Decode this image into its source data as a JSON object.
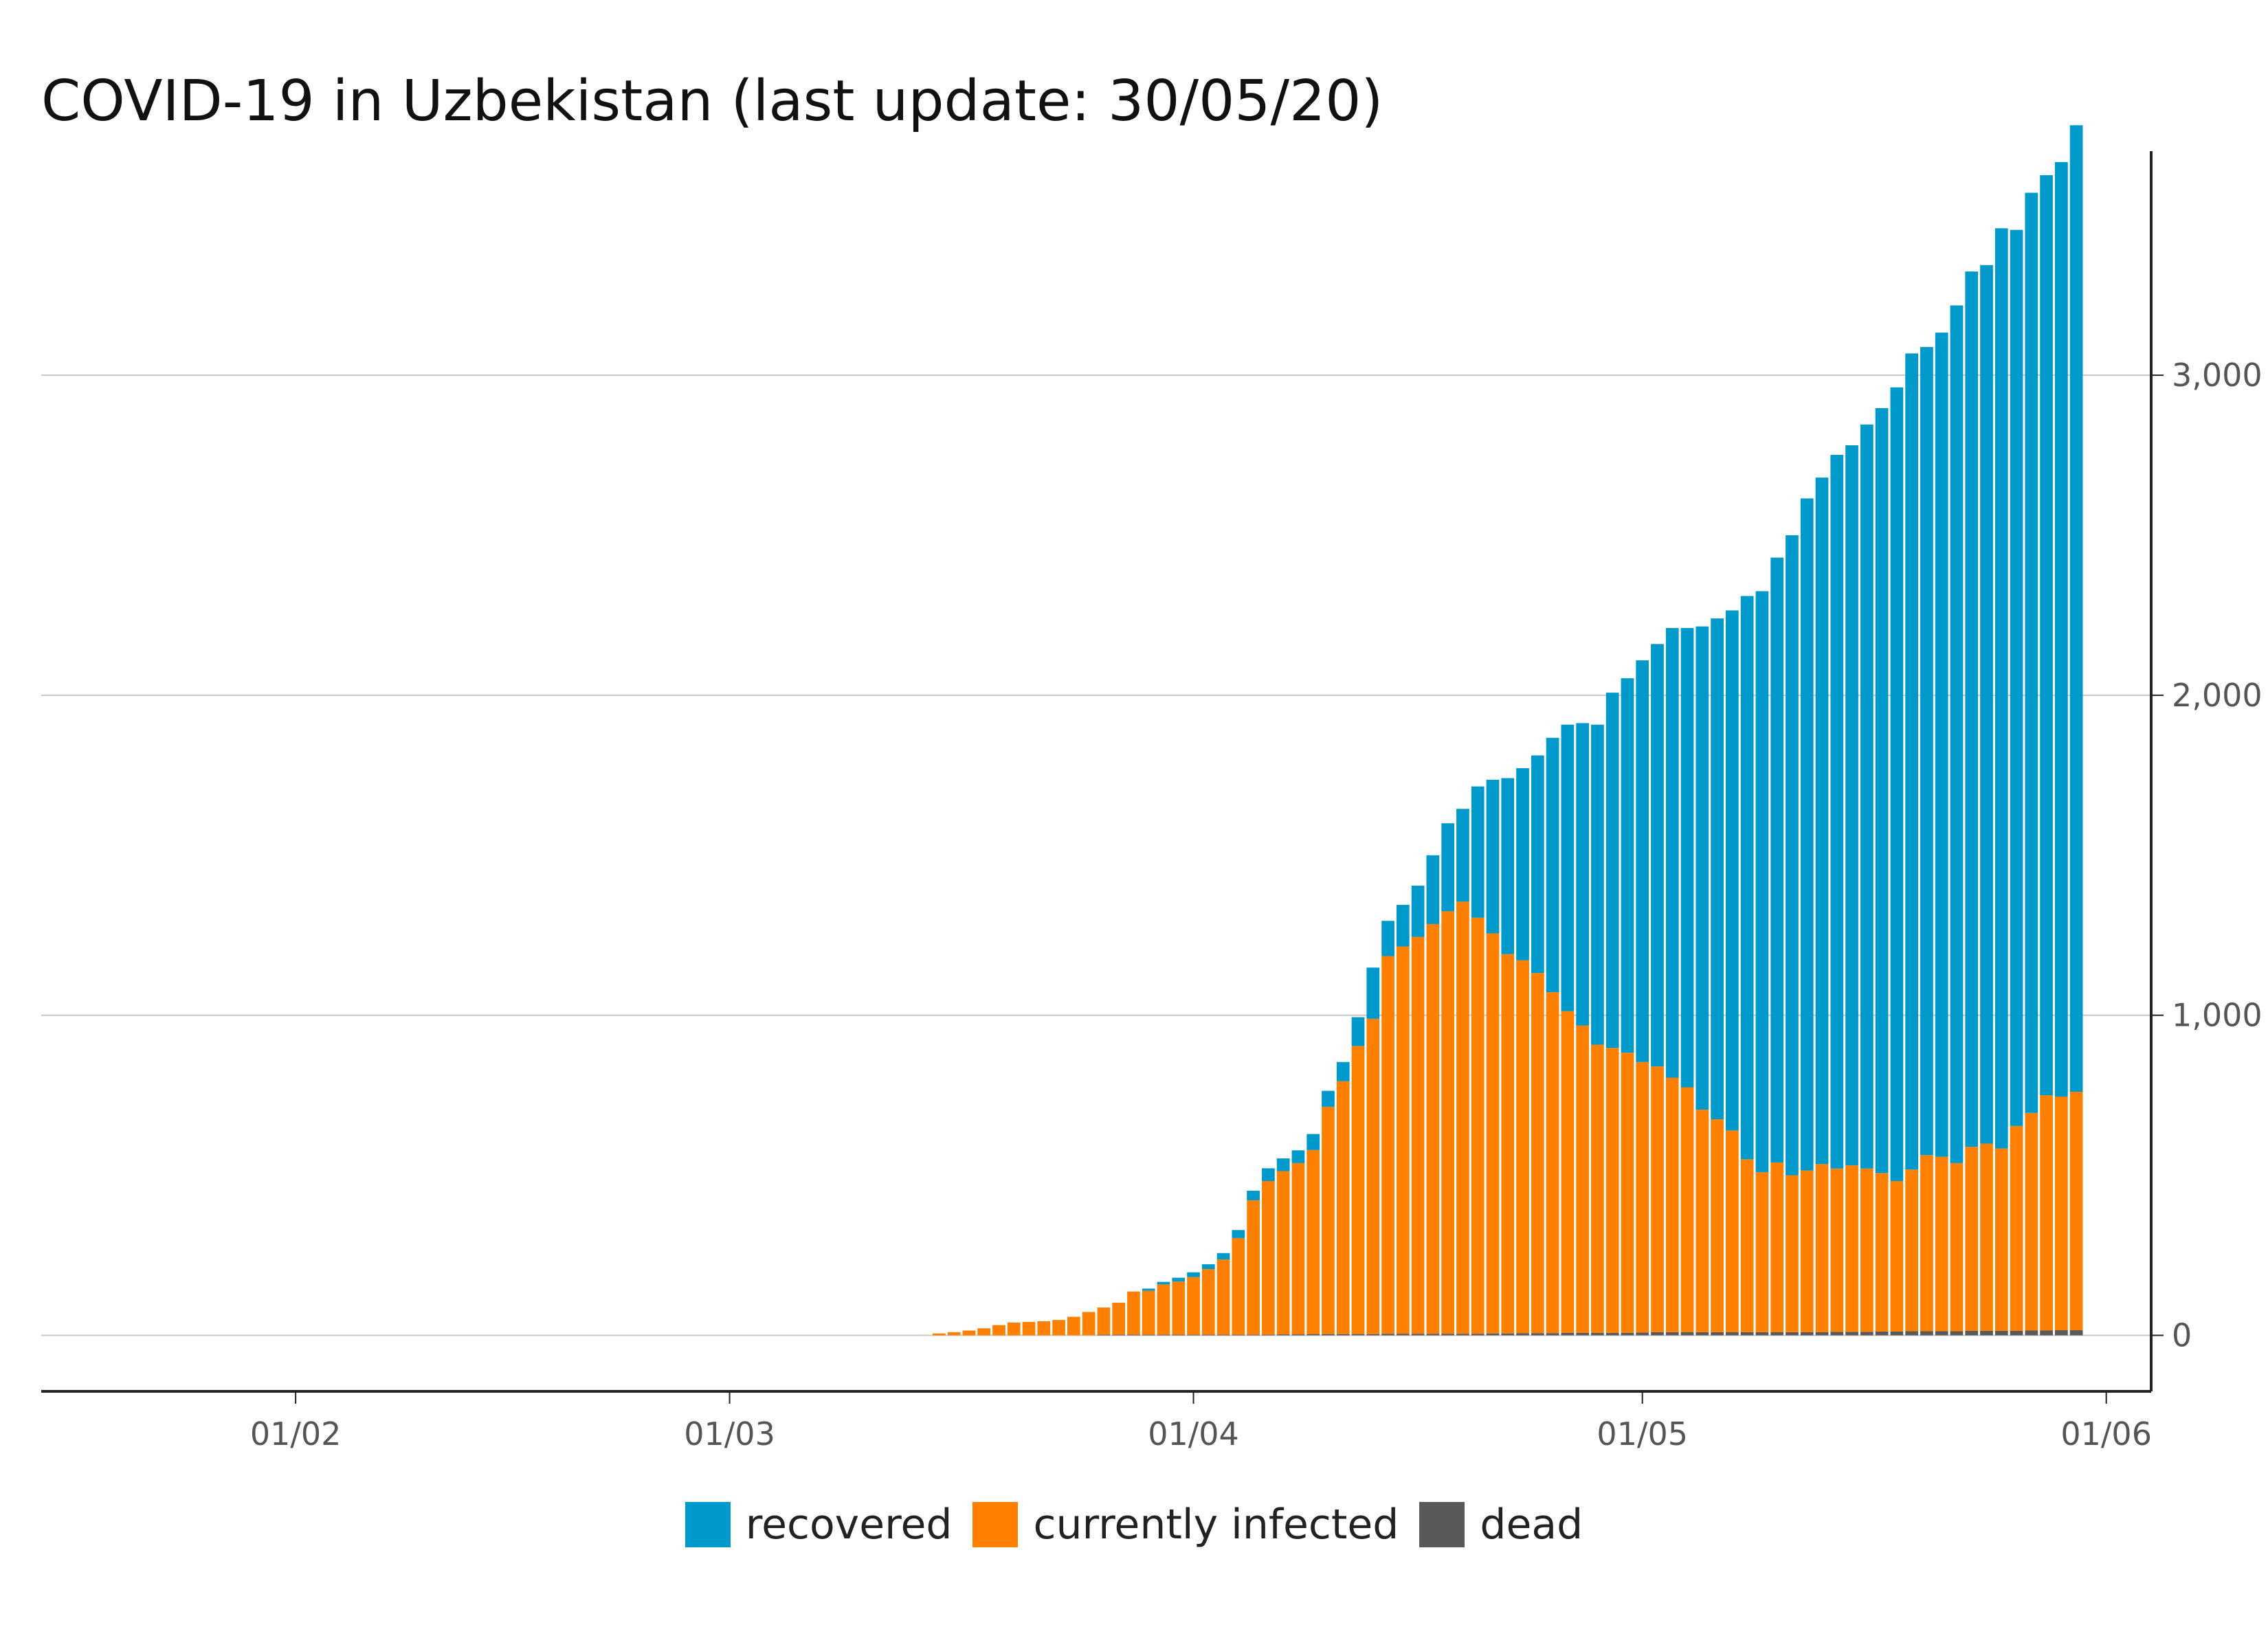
{
  "title": "COVID-19 in Uzbekistan (last update: 30/05/20)",
  "colors": {
    "recovered": "#0099CC",
    "infected": "#FF8000",
    "dead": "#595959"
  },
  "chart_data": {
    "type": "bar",
    "stacked": true,
    "title": "COVID-19 in Uzbekistan (last update: 30/05/20)",
    "xlabel": "",
    "ylabel": "",
    "xlim": [
      "2020-01-15",
      "2020-06-04"
    ],
    "ylim": [
      -175,
      3700
    ],
    "x_ticks": [
      {
        "date": "2020-02-01",
        "label": "01/02"
      },
      {
        "date": "2020-03-01",
        "label": "01/03"
      },
      {
        "date": "2020-04-01",
        "label": "01/04"
      },
      {
        "date": "2020-05-01",
        "label": "01/05"
      },
      {
        "date": "2020-06-01",
        "label": "01/06"
      }
    ],
    "y_ticks": [
      {
        "value": 0,
        "label": "0"
      },
      {
        "value": 1000,
        "label": "1,000"
      },
      {
        "value": 2000,
        "label": "2,000"
      },
      {
        "value": 3000,
        "label": "3,000"
      }
    ],
    "y_axis_position": "right",
    "grid": "horizontal",
    "legend_position": "bottom",
    "x": [
      "2020-03-15",
      "2020-03-16",
      "2020-03-17",
      "2020-03-18",
      "2020-03-19",
      "2020-03-20",
      "2020-03-21",
      "2020-03-22",
      "2020-03-23",
      "2020-03-24",
      "2020-03-25",
      "2020-03-26",
      "2020-03-27",
      "2020-03-28",
      "2020-03-29",
      "2020-03-30",
      "2020-03-31",
      "2020-04-01",
      "2020-04-02",
      "2020-04-03",
      "2020-04-04",
      "2020-04-05",
      "2020-04-06",
      "2020-04-07",
      "2020-04-08",
      "2020-04-09",
      "2020-04-10",
      "2020-04-11",
      "2020-04-12",
      "2020-04-13",
      "2020-04-14",
      "2020-04-15",
      "2020-04-16",
      "2020-04-17",
      "2020-04-18",
      "2020-04-19",
      "2020-04-20",
      "2020-04-21",
      "2020-04-22",
      "2020-04-23",
      "2020-04-24",
      "2020-04-25",
      "2020-04-26",
      "2020-04-27",
      "2020-04-28",
      "2020-04-29",
      "2020-04-30",
      "2020-05-01",
      "2020-05-02",
      "2020-05-03",
      "2020-05-04",
      "2020-05-05",
      "2020-05-06",
      "2020-05-07",
      "2020-05-08",
      "2020-05-09",
      "2020-05-10",
      "2020-05-11",
      "2020-05-12",
      "2020-05-13",
      "2020-05-14",
      "2020-05-15",
      "2020-05-16",
      "2020-05-17",
      "2020-05-18",
      "2020-05-19",
      "2020-05-20",
      "2020-05-21",
      "2020-05-22",
      "2020-05-23",
      "2020-05-24",
      "2020-05-25",
      "2020-05-26",
      "2020-05-27",
      "2020-05-28",
      "2020-05-29",
      "2020-05-30"
    ],
    "series": [
      {
        "name": "dead",
        "color": "#595959",
        "values": [
          0,
          0,
          0,
          0,
          0,
          0,
          0,
          0,
          0,
          0,
          0,
          2,
          2,
          2,
          2,
          2,
          2,
          2,
          2,
          2,
          2,
          2,
          2,
          3,
          3,
          4,
          4,
          4,
          4,
          4,
          5,
          5,
          5,
          5,
          5,
          5,
          5,
          6,
          6,
          7,
          7,
          7,
          8,
          8,
          8,
          8,
          8,
          9,
          10,
          10,
          10,
          10,
          10,
          10,
          10,
          10,
          10,
          10,
          10,
          10,
          11,
          11,
          11,
          12,
          12,
          13,
          13,
          13,
          13,
          14,
          14,
          14,
          14,
          15,
          15,
          16,
          16
        ]
      },
      {
        "name": "currently infected",
        "color": "#FF8000",
        "values": [
          6,
          10,
          15,
          22,
          32,
          40,
          42,
          44,
          48,
          58,
          73,
          85,
          100,
          135,
          137,
          157,
          166,
          180,
          205,
          235,
          302,
          420,
          480,
          510,
          535,
          575,
          710,
          790,
          900,
          985,
          1180,
          1210,
          1240,
          1280,
          1320,
          1350,
          1300,
          1250,
          1185,
          1165,
          1125,
          1065,
          1005,
          960,
          900,
          890,
          875,
          845,
          830,
          795,
          765,
          695,
          665,
          630,
          540,
          500,
          530,
          490,
          505,
          525,
          510,
          520,
          510,
          495,
          470,
          505,
          550,
          545,
          525,
          575,
          585,
          570,
          640,
          680,
          735,
          730,
          745
        ]
      },
      {
        "name": "recovered",
        "color": "#0099CC",
        "values": [
          0,
          0,
          0,
          0,
          0,
          0,
          0,
          0,
          0,
          0,
          0,
          0,
          0,
          0,
          7,
          8,
          12,
          15,
          15,
          20,
          25,
          30,
          40,
          40,
          40,
          50,
          50,
          60,
          90,
          160,
          110,
          130,
          160,
          215,
          275,
          290,
          410,
          480,
          550,
          600,
          680,
          795,
          895,
          945,
          1000,
          1110,
          1170,
          1255,
          1320,
          1405,
          1435,
          1510,
          1565,
          1625,
          1760,
          1815,
          1890,
          2000,
          2100,
          2145,
          2230,
          2250,
          2325,
          2390,
          2480,
          2550,
          2525,
          2575,
          2680,
          2735,
          2745,
          2875,
          2800,
          2875,
          2875,
          2920,
          3020
        ]
      }
    ]
  },
  "legend": [
    {
      "label": "recovered",
      "color": "#0099CC"
    },
    {
      "label": "currently infected",
      "color": "#FF8000"
    },
    {
      "label": "dead",
      "color": "#595959"
    }
  ]
}
